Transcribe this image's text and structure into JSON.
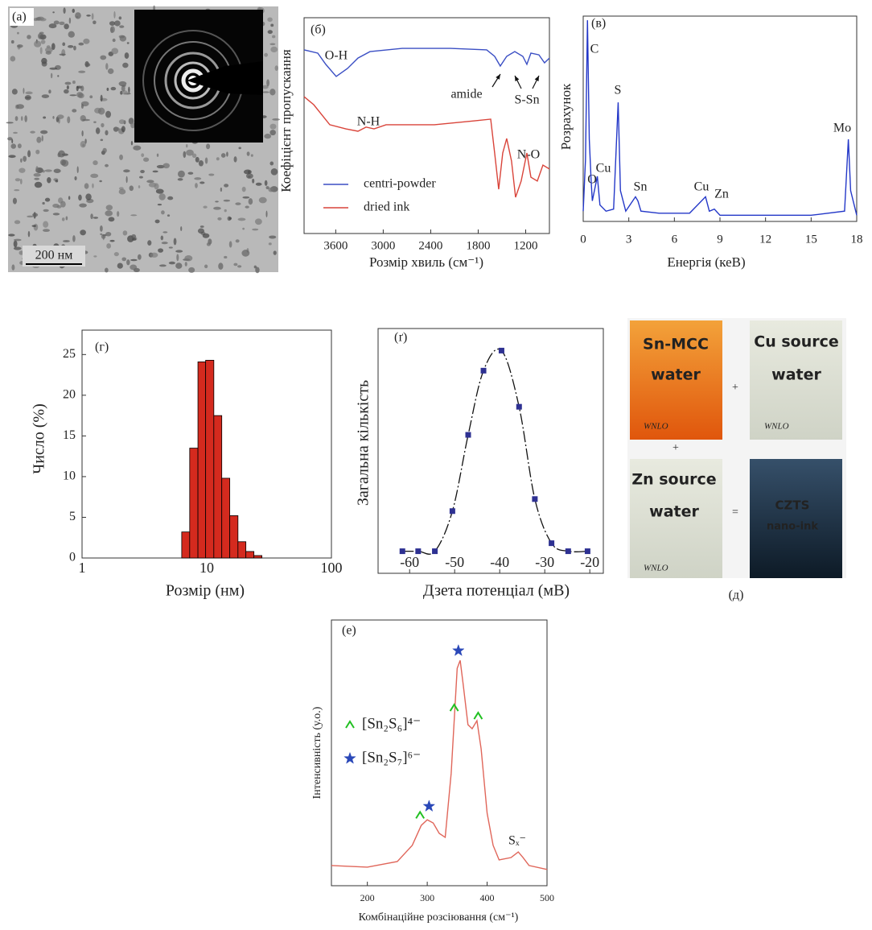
{
  "image_a": {
    "label": "(a)",
    "scale_bar": "200 нм"
  },
  "photos": {
    "label": "(д)",
    "watermark": "WNLO",
    "items": [
      {
        "title": "Sn-MCC",
        "subtitle": "water"
      },
      {
        "title": "Cu source",
        "subtitle": "water"
      },
      {
        "title": "Zn source",
        "subtitle": "water"
      },
      {
        "title": "CZTS",
        "subtitle": "nano-ink"
      }
    ],
    "operators": [
      "+",
      "+",
      "="
    ]
  },
  "chart_data": [
    {
      "type": "line",
      "label": "(б)",
      "xlabel": "Розмір хвиль (см⁻¹)",
      "ylabel": "Коефіцієнт пропускання",
      "xlim": [
        4000,
        900
      ],
      "xticks": [
        3600,
        3000,
        2400,
        1800,
        1200
      ],
      "ylim": [
        0,
        100
      ],
      "annotations": [
        "O-H",
        "N-H",
        "amide",
        "S-Sn",
        "N-O"
      ],
      "series": [
        {
          "name": "centri-powder",
          "color": "#3b4fc4",
          "x": [
            4000,
            3827,
            3726,
            3594,
            3451,
            3319,
            3167,
            2760,
            2150,
            1693,
            1592,
            1521,
            1440,
            1338,
            1236,
            1185,
            1134,
            1033,
            962,
            900
          ],
          "values": [
            85.1,
            83.6,
            78.4,
            72.8,
            76.5,
            81.3,
            84.3,
            85.8,
            85.8,
            85.1,
            82.1,
            77.6,
            82.1,
            84.3,
            82.1,
            78.4,
            83.6,
            82.8,
            79.1,
            81.3
          ]
        },
        {
          "name": "dried ink",
          "color": "#d9443a",
          "x": [
            4000,
            3878,
            3675,
            3472,
            3319,
            3217,
            3116,
            2964,
            2354,
            1846,
            1642,
            1592,
            1541,
            1490,
            1440,
            1379,
            1328,
            1257,
            1185,
            1134,
            1053,
            982,
            900
          ],
          "values": [
            63.4,
            59.7,
            50.4,
            48.5,
            47.4,
            49.3,
            48.5,
            50.4,
            50.4,
            52.2,
            53,
            37.3,
            20.5,
            37.3,
            44,
            33.6,
            16.8,
            24.3,
            37.3,
            26.1,
            24.3,
            31.7,
            29.9
          ]
        }
      ]
    },
    {
      "type": "line",
      "label": "(в)",
      "xlabel": "Енергія (кеВ)",
      "ylabel": "Розрахунок",
      "xlim": [
        0,
        18
      ],
      "xticks": [
        0,
        3,
        6,
        9,
        12,
        15,
        18
      ],
      "ylim": [
        0,
        100
      ],
      "annotations": [
        "C",
        "O",
        "Cu",
        "S",
        "Sn",
        "Cu",
        "Zn",
        "Mo"
      ],
      "series": [
        {
          "color": "#2438c8",
          "x": [
            0,
            0.15,
            0.28,
            0.4,
            0.52,
            0.6,
            0.93,
            1.1,
            1.5,
            2.0,
            2.3,
            2.45,
            2.8,
            3.44,
            3.6,
            3.8,
            5,
            7,
            8.05,
            8.3,
            8.63,
            9,
            12,
            15,
            17.2,
            17.45,
            17.6,
            18
          ],
          "values": [
            5,
            30,
            98,
            40,
            20,
            10,
            22,
            8,
            5,
            6,
            58,
            15,
            5,
            12,
            10,
            5,
            4,
            4,
            12,
            5,
            6,
            3,
            3,
            3,
            5,
            40,
            15,
            3
          ]
        }
      ]
    },
    {
      "type": "histogram",
      "label": "(г)",
      "xlabel": "Розмір (нм)",
      "ylabel": "Число (%)",
      "log_x": true,
      "xlim": [
        1,
        100
      ],
      "xticks": [
        1,
        10,
        100
      ],
      "ylim": [
        0,
        28
      ],
      "yticks": [
        0,
        5,
        10,
        15,
        20,
        25
      ],
      "color": "#d42a1e",
      "bins": [
        6.3,
        7.3,
        8.5,
        9.8,
        11.4,
        13.2,
        15.3,
        17.8,
        20.6,
        23.9,
        27.7
      ],
      "values": [
        3.2,
        13.5,
        24.1,
        24.3,
        17.5,
        9.8,
        5.2,
        2.0,
        0.8,
        0.3
      ]
    },
    {
      "type": "scatter",
      "label": "(ґ)",
      "xlabel": "Дзета потенціал (мВ)",
      "ylabel": "Загальна кількість",
      "xlim": [
        -67,
        -17
      ],
      "xticks": [
        -60,
        -50,
        -40,
        -30,
        -20
      ],
      "ylim": [
        -11,
        111
      ],
      "color": "#2e3192",
      "x": [
        -61.6,
        -58.1,
        -54.4,
        -50.5,
        -47,
        -43.6,
        -39.6,
        -35.7,
        -32.2,
        -28.5,
        -24.8,
        -20.5
      ],
      "values": [
        0,
        0,
        0,
        20,
        58,
        90,
        100,
        72,
        26,
        4,
        0,
        0
      ]
    },
    {
      "type": "line",
      "label": "(е)",
      "xlabel": "Комбінаційне розсіювання (см⁻¹)",
      "ylabel": "Інтенсивність (у.о.)",
      "xlim": [
        140,
        500
      ],
      "xticks": [
        200,
        300,
        400,
        500
      ],
      "ylim": [
        0,
        100
      ],
      "annotations": [
        "Sₓ⁻"
      ],
      "legend": [
        "[Sn₂S₆]⁴⁻",
        "[Sn₂S₇]⁶⁻"
      ],
      "peak_marks": [
        {
          "color": "#22c022",
          "x": [
            288,
            345,
            385
          ]
        },
        {
          "color": "#2a48b8",
          "x": [
            303,
            352
          ]
        }
      ],
      "series": [
        {
          "color": "#e0665a",
          "x": [
            140,
            200,
            250,
            275,
            290,
            300,
            310,
            320,
            330,
            340,
            350,
            355,
            360,
            368,
            375,
            383,
            390,
            400,
            410,
            420,
            440,
            452,
            460,
            470,
            500
          ],
          "values": [
            7.6,
            7,
            9.1,
            15.2,
            22.7,
            24.8,
            23.6,
            19.7,
            18.2,
            42.4,
            81.8,
            84.8,
            75.8,
            60.6,
            59.1,
            62.1,
            51.5,
            27.3,
            15.2,
            9.7,
            10.6,
            12.7,
            10.6,
            7.6,
            6.1
          ]
        }
      ]
    }
  ]
}
